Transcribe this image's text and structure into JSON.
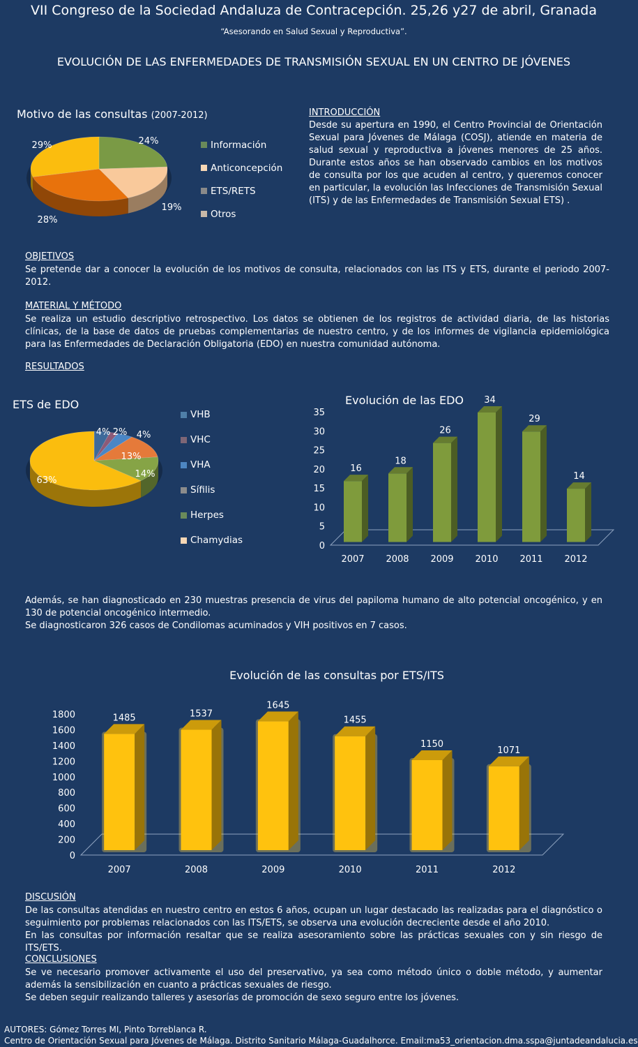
{
  "header": {
    "title": "VII Congreso de la Sociedad Andaluza de Contracepción. 25,26 y27 de abril, Granada",
    "subtitle": "“Asesorando en Salud Sexual y Reproductiva”.",
    "poster_title": "EVOLUCIÓN DE LAS ENFERMEDADES DE TRANSMISIÓN SEXUAL EN UN CENTRO DE JÓVENES"
  },
  "intro": {
    "title": "INTRODUCCIÓN",
    "text": "Desde su apertura en 1990, el Centro Provincial de Orientación Sexual para Jóvenes de Málaga (COSJ), atiende en materia de salud sexual y reproductiva a jóvenes menores de 25 años. Durante estos años se han observado cambios en los motivos de consulta por los que acuden al centro, y queremos conocer en particular, la evolución las Infecciones de Transmisión Sexual (ITS) y de las Enfermedades de Transmisión Sexual ETS) ."
  },
  "objetivos": {
    "title": "OBJETIVOS",
    "text": "Se pretende dar a conocer la evolución de los motivos de consulta, relacionados con las ITS y ETS, durante el periodo  2007-2012."
  },
  "metodo": {
    "title": "MATERIAL Y MÉTODO",
    "text": "Se realiza un estudio descriptivo retrospectivo. Los datos se obtienen de los registros de actividad diaria, de las historias clínicas, de la base de datos de pruebas complementarias de nuestro centro, y de los informes de vigilancia epidemiológica para las Enfermedades de Declaración Obligatoria (EDO) en nuestra comunidad autónoma."
  },
  "resultados": {
    "title": "RESULTADOS",
    "line1": "Además, se han diagnosticado en 230 muestras presencia de virus del papiloma humano de alto potencial  oncogénico, y en 130 de potencial oncogénico intermedio.",
    "line2": "Se diagnosticaron 326 casos de Condilomas acuminados y  VIH positivos en 7 casos."
  },
  "discusion": {
    "title": "DISCUSIÓN",
    "line1": "De las consultas atendidas en nuestro centro en estos 6 años, ocupan un lugar destacado las realizadas para el diagnóstico o seguimiento por problemas relacionados con las ITS/ETS, se observa una evolución decreciente desde el año 2010.",
    "line2": "En las consultas por información resaltar que se realiza asesoramiento sobre las prácticas sexuales con y sin riesgo de ITS/ETS."
  },
  "conclusiones": {
    "title": "CONCLUSIONES",
    "line1": "Se ve necesario promover activamente el uso del preservativo, ya sea como método único o doble método, y aumentar además la sensibilización en cuanto a prácticas sexuales de riesgo.",
    "line2": "Se deben seguir realizando talleres y asesorías de promoción de sexo seguro entre los jóvenes."
  },
  "footer": {
    "authors": "AUTORES: Gómez Torres MI, Pinto Torreblanca R.",
    "center": "Centro de Orientación Sexual para Jóvenes de Málaga. Distrito Sanitario Málaga-Guadalhorce. Email:ma53_orientacion.dma.sspa@juntadeandalucia.es"
  },
  "chart_data": [
    {
      "type": "pie",
      "title": "Motivo de las consultas",
      "title_suffix": "(2007-2012)",
      "categories": [
        "Información",
        "Anticoncepción",
        "ETS/RETS",
        "Otros"
      ],
      "values": [
        24,
        19,
        28,
        29
      ],
      "labels": [
        "24%",
        "19%",
        "28%",
        "29%"
      ],
      "colors": [
        "#7a9a45",
        "#f9c99b",
        "#e8720c",
        "#fbbd0e"
      ],
      "legend_colors": [
        "#6a8a5a",
        "#f6d7b5",
        "#8a8a8a",
        "#c8b8a8"
      ],
      "legend": "right"
    },
    {
      "type": "pie",
      "title": "ETS de EDO",
      "categories": [
        "VHB",
        "VHC",
        "VHA",
        "Sífilis",
        "Herpes",
        "Chamydias"
      ],
      "values": [
        4,
        2,
        4,
        13,
        14,
        63
      ],
      "labels": [
        "4%",
        "2%",
        "4%",
        "13%",
        "14%",
        "63%"
      ],
      "colors": [
        "#3e6a9a",
        "#8c5a78",
        "#4a86c6",
        "#e57a3a",
        "#86a446",
        "#fbbd0e"
      ],
      "legend_colors": [
        "#4f7fa8",
        "#7e6676",
        "#4d86c2",
        "#8c8c8c",
        "#6a8a5a",
        "#f6d7b5"
      ],
      "legend": "right"
    },
    {
      "type": "bar",
      "title": "Evolución de las EDO",
      "categories": [
        "2007",
        "2008",
        "2009",
        "2010",
        "2011",
        "2012"
      ],
      "values": [
        16,
        18,
        26,
        34,
        29,
        14
      ],
      "ylim": [
        0,
        35
      ],
      "yticks": [
        "0",
        "5",
        "10",
        "15",
        "20",
        "25",
        "30",
        "35"
      ],
      "color": "#7f9b3c"
    },
    {
      "type": "bar",
      "title": "Evolución de las consultas por ETS/ITS",
      "categories": [
        "2007",
        "2008",
        "2009",
        "2010",
        "2011",
        "2012"
      ],
      "values": [
        1485,
        1537,
        1645,
        1455,
        1150,
        1071
      ],
      "ylim": [
        0,
        1800
      ],
      "yticks": [
        "0",
        "200",
        "400",
        "600",
        "800",
        "1000",
        "1200",
        "1400",
        "1600",
        "1800"
      ],
      "color": "#ffc20e"
    }
  ]
}
